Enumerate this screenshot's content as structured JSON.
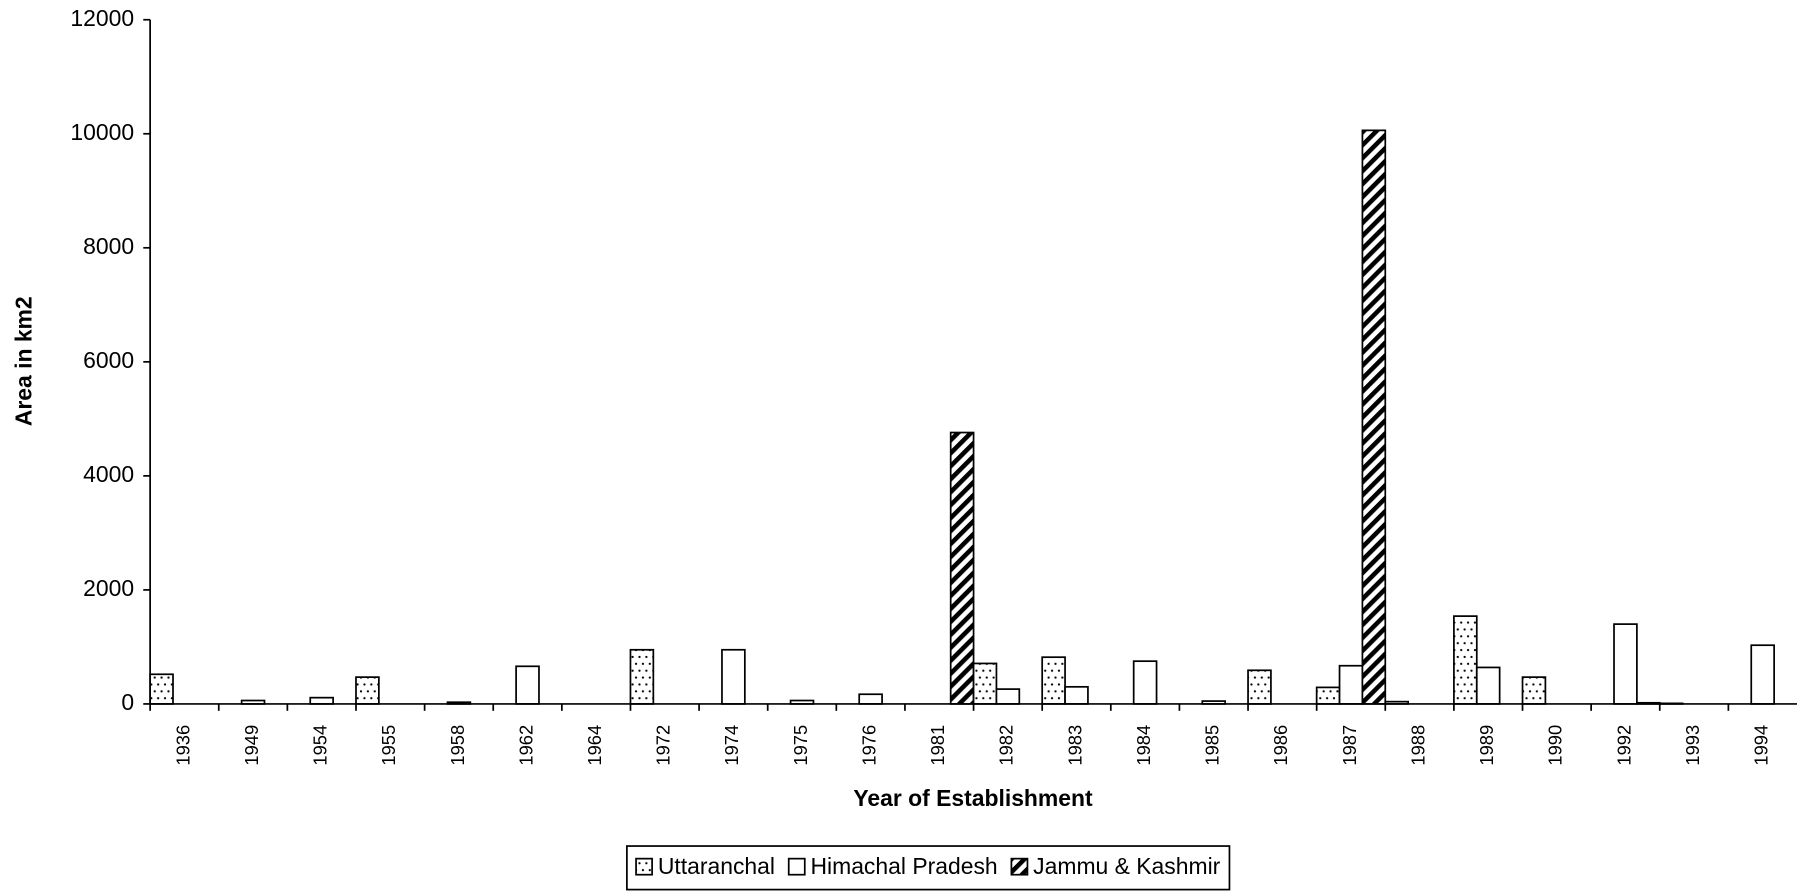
{
  "chart_data": {
    "type": "bar",
    "x_label": "Year of Establishment",
    "y_label": "Area in km2",
    "categories": [
      "1936",
      "1949",
      "1954",
      "1955",
      "1958",
      "1962",
      "1964",
      "1972",
      "1974",
      "1975",
      "1976",
      "1981",
      "1982",
      "1983",
      "1984",
      "1985",
      "1986",
      "1987",
      "1988",
      "1989",
      "1990",
      "1992",
      "1993",
      "1994"
    ],
    "series": [
      {
        "name": "Uttaranchal",
        "color": "#000000",
        "pattern": "dots",
        "values": [
          520,
          0,
          0,
          470,
          0,
          0,
          0,
          950,
          0,
          0,
          0,
          0,
          710,
          820,
          0,
          0,
          590,
          290,
          40,
          1540,
          470,
          0,
          10,
          0
        ]
      },
      {
        "name": "Himachal Pradesh",
        "color": "#000000",
        "pattern": "none",
        "values": [
          0,
          60,
          110,
          0,
          30,
          660,
          0,
          0,
          950,
          60,
          170,
          0,
          260,
          300,
          750,
          50,
          0,
          670,
          0,
          640,
          0,
          1400,
          0,
          1030
        ]
      },
      {
        "name": "Jammu & Kashmir",
        "color": "#000000",
        "pattern": "hatch",
        "values": [
          0,
          0,
          0,
          0,
          0,
          0,
          0,
          0,
          0,
          0,
          0,
          4760,
          0,
          0,
          0,
          0,
          0,
          10060,
          0,
          0,
          0,
          20,
          0,
          0
        ]
      }
    ],
    "ylim": [
      0,
      12000
    ],
    "yticks": [
      0,
      2000,
      4000,
      6000,
      8000,
      10000,
      12000
    ],
    "grid": false,
    "legend": "bottom"
  }
}
